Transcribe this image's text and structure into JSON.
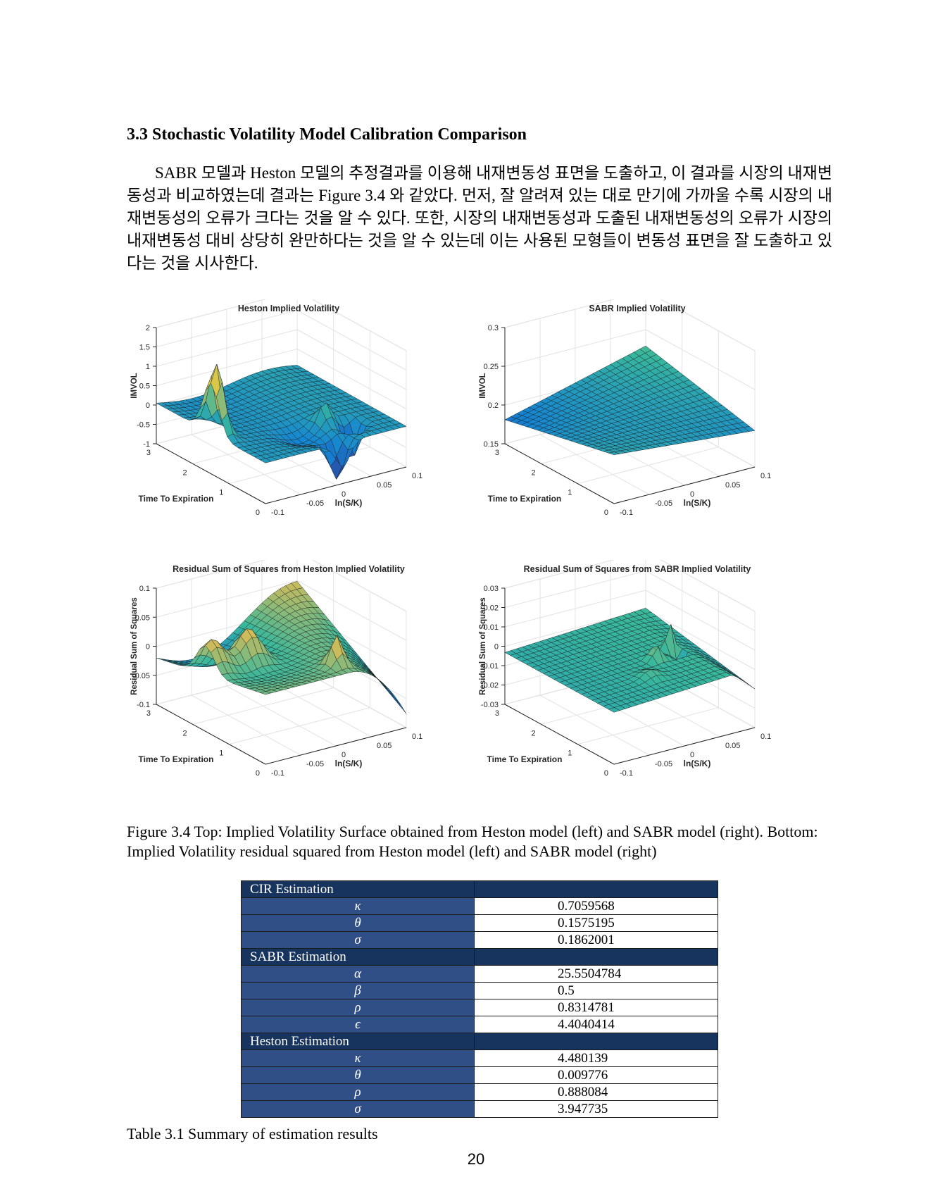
{
  "section_title": "3.3 Stochastic Volatility Model Calibration Comparison",
  "paragraph": "SABR 모델과 Heston 모델의 추정결과를 이용해 내재변동성 표면을 도출하고, 이 결과를 시장의 내재변동성과 비교하였는데 결과는 Figure 3.4 와 같았다. 먼저, 잘 알려져 있는 대로 만기에 가까울 수록 시장의 내재변동성의 오류가 크다는 것을 알 수 있다. 또한, 시장의 내재변동성과 도출된 내재변동성의 오류가 시장의 내재변동성 대비 상당히 완만하다는 것을 알 수 있는데 이는 사용된 모형들이 변동성 표면을 잘 도출하고 있다는 것을 시사한다.",
  "chart_data": [
    {
      "type": "surface",
      "title": "Heston Implied Volatility",
      "zlabel": "IMVOL",
      "ylabel": "Time To Expiration",
      "xlabel": "ln(S/K)",
      "z_ticks": [
        "2",
        "1.5",
        "1",
        "0.5",
        "0",
        "-0.5",
        "-1"
      ],
      "y_ticks": [
        "3",
        "2",
        "1",
        "0"
      ],
      "x_ticks": [
        "-0.1",
        "-0.05",
        "0",
        "0.05",
        "0.1"
      ],
      "zlim": [
        -1,
        2
      ],
      "ylim": [
        0,
        3
      ],
      "xlim": [
        -0.1,
        0.1
      ]
    },
    {
      "type": "surface",
      "title": "SABR Implied Volatility",
      "zlabel": "IMVOL",
      "ylabel": "Time to Expiration",
      "xlabel": "ln(S/K)",
      "z_ticks": [
        "0.3",
        "0.25",
        "0.2",
        "0.15"
      ],
      "y_ticks": [
        "3",
        "2",
        "1",
        "0"
      ],
      "x_ticks": [
        "-0.1",
        "-0.05",
        "0",
        "0.05",
        "0.1"
      ],
      "zlim": [
        0.15,
        0.3
      ],
      "ylim": [
        0,
        3
      ],
      "xlim": [
        -0.1,
        0.1
      ]
    },
    {
      "type": "surface",
      "title": "Residual Sum of Squares from Heston Implied Volatility",
      "zlabel": "Residual Sum of Squares",
      "ylabel": "Time To Expiration",
      "xlabel": "ln(S/K)",
      "z_ticks": [
        "0.1",
        "0.05",
        "0",
        "-0.05",
        "-0.1"
      ],
      "y_ticks": [
        "3",
        "2",
        "1",
        "0"
      ],
      "x_ticks": [
        "-0.1",
        "-0.05",
        "0",
        "0.05",
        "0.1"
      ],
      "zlim": [
        -0.1,
        0.1
      ],
      "ylim": [
        0,
        3
      ],
      "xlim": [
        -0.1,
        0.1
      ]
    },
    {
      "type": "surface",
      "title": "Residual Sum of Squares from SABR Implied Volatility",
      "zlabel": "Residual Sum of Squares",
      "ylabel": "Time To Expiration",
      "xlabel": "ln(S/K)",
      "z_ticks": [
        "0.03",
        "0.02",
        "0.01",
        "0",
        "-0.01",
        "-0.02",
        "-0.03"
      ],
      "y_ticks": [
        "3",
        "2",
        "1",
        "0"
      ],
      "x_ticks": [
        "-0.1",
        "-0.05",
        "0",
        "0.05",
        "0.1"
      ],
      "zlim": [
        -0.03,
        0.03
      ],
      "ylim": [
        0,
        3
      ],
      "xlim": [
        -0.1,
        0.1
      ]
    }
  ],
  "figure_caption": "Figure 3.4 Top: Implied Volatility Surface obtained from Heston model (left) and SABR model (right). Bottom: Implied Volatility residual squared from Heston model (left) and SABR model (right)",
  "table": {
    "groups": [
      {
        "name": "CIR Estimation",
        "rows": [
          {
            "param": "κ",
            "value": "0.7059568"
          },
          {
            "param": "θ",
            "value": "0.1575195"
          },
          {
            "param": "σ",
            "value": "0.1862001"
          }
        ]
      },
      {
        "name": "SABR Estimation",
        "rows": [
          {
            "param": "α",
            "value": "25.5504784"
          },
          {
            "param": "β",
            "value": "0.5"
          },
          {
            "param": "ρ",
            "value": "0.8314781"
          },
          {
            "param": "ϵ",
            "value": "4.4040414"
          }
        ]
      },
      {
        "name": "Heston Estimation",
        "rows": [
          {
            "param": "κ",
            "value": "4.480139"
          },
          {
            "param": "θ",
            "value": "0.009776"
          },
          {
            "param": "ρ",
            "value": "0.888084"
          },
          {
            "param": "σ",
            "value": "3.947735"
          }
        ]
      }
    ],
    "caption": "Table 3.1 Summary of estimation results"
  },
  "page_number": "20"
}
